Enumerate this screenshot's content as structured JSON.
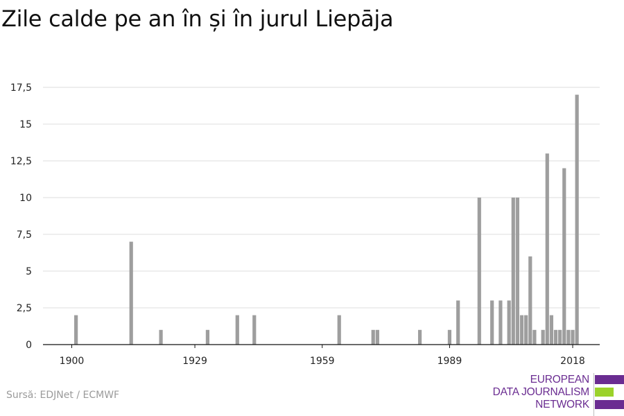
{
  "title": "Zile calde pe an în și în jurul Liepāja",
  "source": "Sursă: EDJNet / ECMWF",
  "logo": {
    "lines": [
      "EUROPEAN",
      "DATA JOURNALISM",
      "NETWORK"
    ],
    "colors": [
      "#6a2c91",
      "#9bd22a",
      "#6a2c91"
    ]
  },
  "chart_data": {
    "type": "bar",
    "title": "Zile calde pe an în și în jurul Liepāja",
    "xlabel": "",
    "ylabel": "",
    "bar_color": "#9e9e9e",
    "grid": true,
    "xlim": [
      1894,
      2024
    ],
    "ylim": [
      0,
      17.5
    ],
    "x_ticks": [
      1900,
      1929,
      1959,
      1989,
      2018
    ],
    "y_ticks": [
      {
        "value": 0,
        "label": "0"
      },
      {
        "value": 2.5,
        "label": "2,5"
      },
      {
        "value": 5,
        "label": "5"
      },
      {
        "value": 7.5,
        "label": "7,5"
      },
      {
        "value": 10,
        "label": "10"
      },
      {
        "value": 12.5,
        "label": "12,5"
      },
      {
        "value": 15,
        "label": "15"
      },
      {
        "value": 17.5,
        "label": "17,5"
      }
    ],
    "x": [
      1901,
      1914,
      1921,
      1932,
      1939,
      1943,
      1963,
      1971,
      1972,
      1982,
      1989,
      1991,
      1996,
      1999,
      2001,
      2003,
      2004,
      2005,
      2006,
      2007,
      2008,
      2009,
      2011,
      2012,
      2013,
      2014,
      2015,
      2016,
      2017,
      2018,
      2019,
      2021
    ],
    "values": [
      2,
      7,
      1,
      1,
      2,
      2,
      2,
      1,
      1,
      1,
      1,
      3,
      10,
      3,
      3,
      3,
      10,
      10,
      2,
      2,
      6,
      1,
      1,
      13,
      2,
      1,
      1,
      12,
      1,
      1,
      17,
      0
    ]
  }
}
